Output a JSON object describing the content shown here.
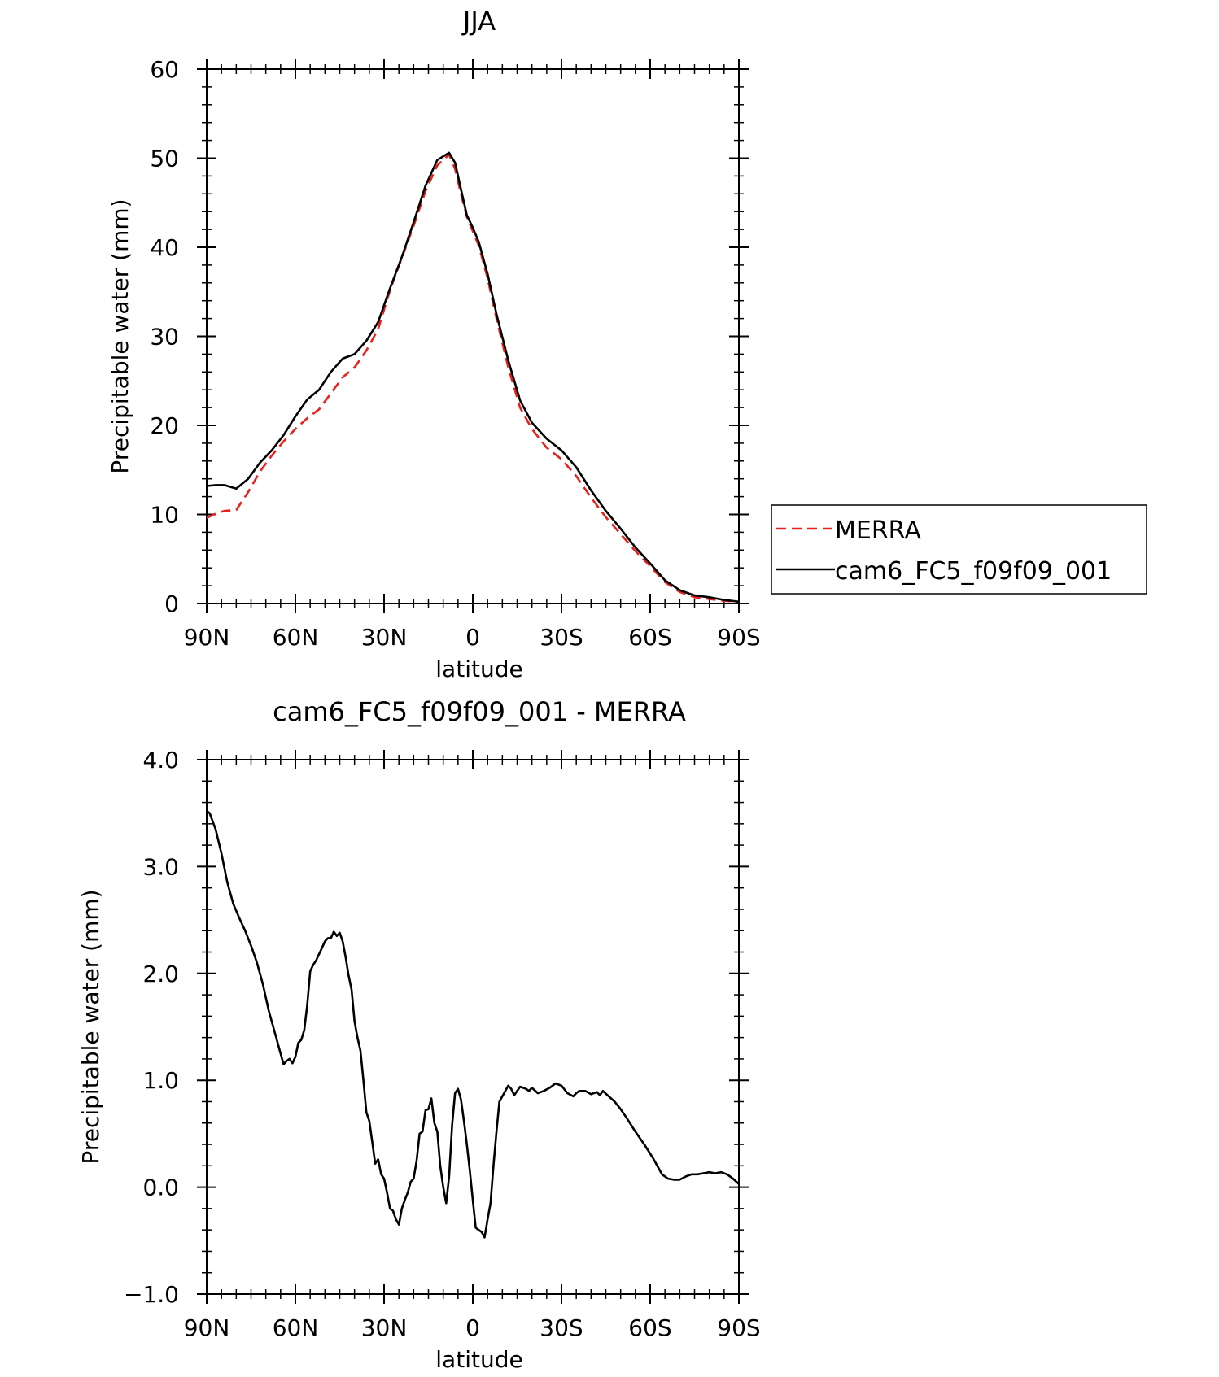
{
  "chart_data": [
    {
      "type": "line",
      "title": "JJA",
      "xlabel": "latitude",
      "ylabel": "Precipitable water (mm)",
      "xlim": [
        90,
        -90
      ],
      "ylim": [
        0,
        60
      ],
      "x_tick_values": [
        90,
        60,
        30,
        0,
        -30,
        -60,
        -90
      ],
      "x_tick_labels": [
        "90N",
        "60N",
        "30N",
        "0",
        "30S",
        "60S",
        "90S"
      ],
      "y_tick_values": [
        0,
        10,
        20,
        30,
        40,
        50,
        60
      ],
      "y_tick_labels": [
        "0",
        "10",
        "20",
        "30",
        "40",
        "50",
        "60"
      ],
      "grid": false,
      "legend": {
        "placement": "right",
        "entries": [
          "MERRA",
          "cam6_FC5_f09f09_001"
        ]
      },
      "series": [
        {
          "name": "MERRA",
          "color": "#e8211d",
          "dash": "dashed",
          "x": [
            90,
            87,
            84,
            80,
            76,
            72,
            68,
            64,
            60,
            56,
            52,
            48,
            44,
            40,
            36,
            32,
            28,
            24,
            20,
            16,
            12,
            8,
            6,
            4,
            2,
            0,
            -2,
            -5,
            -8,
            -12,
            -16,
            -20,
            -25,
            -30,
            -35,
            -40,
            -45,
            -50,
            -55,
            -60,
            -65,
            -70,
            -75,
            -80,
            -85,
            -90
          ],
          "y": [
            9.6,
            10.1,
            10.4,
            10.5,
            12.5,
            14.8,
            16.6,
            18.2,
            19.6,
            20.8,
            21.8,
            23.6,
            25.4,
            26.5,
            28.4,
            30.8,
            35.2,
            38.8,
            42.4,
            46.3,
            49.2,
            50.4,
            48.8,
            46.0,
            43.4,
            41.8,
            40.2,
            36.5,
            32.0,
            26.5,
            22.0,
            19.6,
            17.5,
            16.2,
            14.3,
            11.9,
            9.7,
            7.8,
            5.9,
            4.2,
            2.4,
            1.3,
            0.7,
            0.5,
            0.3,
            0.2
          ]
        },
        {
          "name": "cam6_FC5_f09f09_001",
          "color": "#000000",
          "dash": "solid",
          "x": [
            90,
            87,
            84,
            80,
            76,
            72,
            68,
            64,
            60,
            56,
            52,
            48,
            44,
            40,
            36,
            32,
            28,
            24,
            20,
            16,
            12,
            8,
            6,
            4,
            2,
            0,
            -2,
            -5,
            -8,
            -12,
            -16,
            -20,
            -25,
            -30,
            -35,
            -40,
            -45,
            -50,
            -55,
            -60,
            -65,
            -70,
            -75,
            -80,
            -85,
            -90
          ],
          "y": [
            13.2,
            13.3,
            13.3,
            12.9,
            14.0,
            15.8,
            17.2,
            18.9,
            21.0,
            22.9,
            24.0,
            26.0,
            27.5,
            28.0,
            29.5,
            31.6,
            35.4,
            38.9,
            42.8,
            46.9,
            49.8,
            50.6,
            49.5,
            46.5,
            43.6,
            42.2,
            40.6,
            37.0,
            32.5,
            27.3,
            22.8,
            20.3,
            18.5,
            17.2,
            15.3,
            12.7,
            10.4,
            8.4,
            6.3,
            4.5,
            2.6,
            1.5,
            0.9,
            0.7,
            0.4,
            0.2
          ]
        }
      ]
    },
    {
      "type": "line",
      "title": "cam6_FC5_f09f09_001 - MERRA",
      "xlabel": "latitude",
      "ylabel": "Precipitable water (mm)",
      "xlim": [
        90,
        -90
      ],
      "ylim": [
        -1.0,
        4.0
      ],
      "x_tick_values": [
        90,
        60,
        30,
        0,
        -30,
        -60,
        -90
      ],
      "x_tick_labels": [
        "90N",
        "60N",
        "30N",
        "0",
        "30S",
        "60S",
        "90S"
      ],
      "y_tick_values": [
        -1.0,
        0.0,
        1.0,
        2.0,
        3.0,
        4.0
      ],
      "y_tick_labels": [
        "−1.0",
        "0.0",
        "1.0",
        "2.0",
        "3.0",
        "4.0"
      ],
      "grid": false,
      "series": [
        {
          "color": "#000000",
          "dash": "solid",
          "x": [
            90,
            89,
            87,
            85,
            83,
            81,
            79,
            77,
            75,
            73,
            71,
            69,
            67,
            66,
            65,
            64,
            63,
            62,
            61,
            60,
            59,
            58,
            57,
            56,
            55,
            54,
            53,
            52,
            51,
            50,
            49,
            48,
            47,
            46,
            45,
            44,
            43,
            42,
            41,
            40,
            39,
            38,
            37,
            36,
            35,
            34,
            33,
            32,
            31,
            30,
            29,
            28,
            27,
            26,
            25,
            24,
            23,
            22,
            21,
            20,
            19,
            18,
            17,
            16,
            15,
            14,
            13,
            12,
            11,
            10,
            9,
            8,
            7,
            6,
            5,
            4,
            3,
            2,
            1,
            0,
            -1,
            -2,
            -3,
            -4,
            -5,
            -6,
            -7,
            -8,
            -9,
            -10,
            -11,
            -12,
            -13,
            -14,
            -15,
            -16,
            -17,
            -18,
            -19,
            -20,
            -22,
            -24,
            -26,
            -28,
            -30,
            -32,
            -34,
            -35,
            -36,
            -38,
            -40,
            -42,
            -43,
            -44,
            -46,
            -48,
            -50,
            -52,
            -55,
            -58,
            -61,
            -64,
            -66,
            -68,
            -70,
            -72,
            -74,
            -76,
            -78,
            -80,
            -82,
            -84,
            -86,
            -88,
            -90
          ],
          "y": [
            3.52,
            3.5,
            3.35,
            3.12,
            2.85,
            2.65,
            2.52,
            2.4,
            2.26,
            2.1,
            1.9,
            1.65,
            1.45,
            1.35,
            1.25,
            1.15,
            1.18,
            1.2,
            1.16,
            1.22,
            1.35,
            1.38,
            1.47,
            1.7,
            2.02,
            2.08,
            2.12,
            2.18,
            2.24,
            2.3,
            2.33,
            2.33,
            2.39,
            2.35,
            2.38,
            2.3,
            2.15,
            1.98,
            1.85,
            1.55,
            1.4,
            1.28,
            1.0,
            0.7,
            0.62,
            0.42,
            0.22,
            0.26,
            0.12,
            0.08,
            -0.05,
            -0.2,
            -0.22,
            -0.3,
            -0.35,
            -0.2,
            -0.12,
            -0.05,
            0.05,
            0.08,
            0.25,
            0.5,
            0.52,
            0.72,
            0.73,
            0.83,
            0.6,
            0.52,
            0.2,
            0.0,
            -0.15,
            0.1,
            0.58,
            0.88,
            0.92,
            0.82,
            0.62,
            0.4,
            0.15,
            -0.12,
            -0.38,
            -0.4,
            -0.42,
            -0.47,
            -0.3,
            -0.15,
            0.2,
            0.52,
            0.8,
            0.85,
            0.9,
            0.95,
            0.92,
            0.86,
            0.9,
            0.94,
            0.93,
            0.92,
            0.9,
            0.93,
            0.88,
            0.9,
            0.93,
            0.97,
            0.95,
            0.88,
            0.85,
            0.88,
            0.9,
            0.9,
            0.87,
            0.89,
            0.86,
            0.9,
            0.85,
            0.8,
            0.73,
            0.65,
            0.52,
            0.4,
            0.27,
            0.12,
            0.08,
            0.07,
            0.07,
            0.1,
            0.12,
            0.12,
            0.13,
            0.14,
            0.13,
            0.14,
            0.12,
            0.08,
            0.03
          ]
        }
      ]
    }
  ]
}
